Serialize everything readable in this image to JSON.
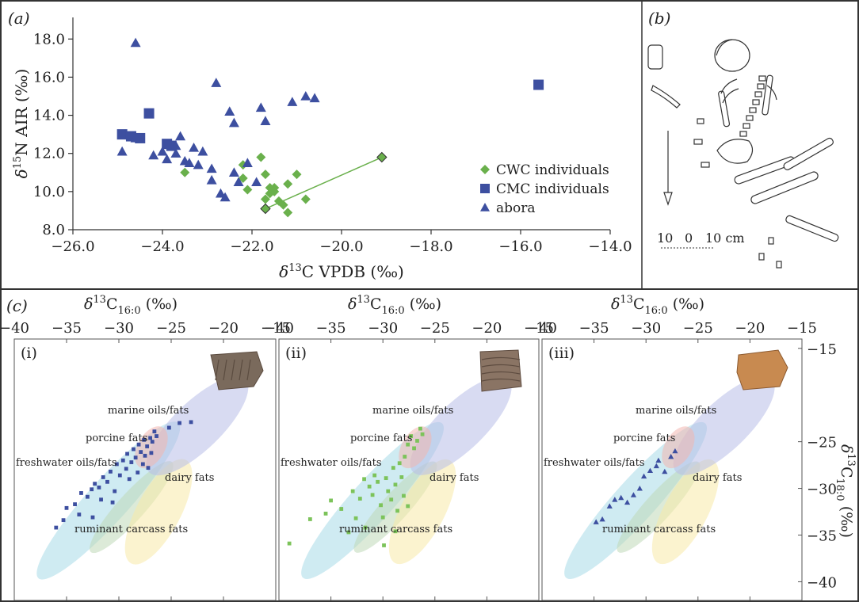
{
  "panels": {
    "a_label": "(a)",
    "b_label": "(b)",
    "c_label": "(c)"
  },
  "colors": {
    "cwc": "#6ab04c",
    "cmc": "#3d4fa0",
    "abora": "#3d4fa0",
    "marine": "#b8bee8",
    "porcine": "#f2b7b0",
    "freshwater": "#a7dbe8",
    "dairy": "#f7eaa8",
    "ruminant": "#bfd8b8"
  },
  "scale_bar": {
    "ticks": [
      "10",
      "0",
      "10 cm"
    ]
  },
  "chart_data": [
    {
      "id": "a",
      "type": "scatter",
      "xlabel": "δ13C VPDB (‰)",
      "ylabel": "δ15N AIR (‰)",
      "xlim": [
        -26,
        -14
      ],
      "ylim": [
        8,
        19
      ],
      "xticks": [
        "−26.0",
        "−24.0",
        "−22.0",
        "−20.0",
        "−18.0",
        "−16.0",
        "−14.0"
      ],
      "yticks": [
        "8.0",
        "10.0",
        "12.0",
        "14.0",
        "16.0",
        "18.0"
      ],
      "legend_position": "right",
      "series": [
        {
          "name": "CWC individuals",
          "marker": "diamond",
          "points": [
            [
              -23.5,
              11.0
            ],
            [
              -22.2,
              11.4
            ],
            [
              -22.2,
              10.7
            ],
            [
              -22.1,
              10.1
            ],
            [
              -21.8,
              11.8
            ],
            [
              -21.7,
              10.9
            ],
            [
              -21.7,
              9.6
            ],
            [
              -21.6,
              9.9
            ],
            [
              -21.6,
              10.2
            ],
            [
              -21.5,
              10.2
            ],
            [
              -21.5,
              10.0
            ],
            [
              -21.4,
              9.5
            ],
            [
              -21.3,
              9.3
            ],
            [
              -21.2,
              8.9
            ],
            [
              -21.2,
              10.4
            ],
            [
              -21.0,
              10.9
            ],
            [
              -20.8,
              9.6
            ],
            [
              -19.1,
              11.8
            ],
            [
              -21.7,
              9.1
            ]
          ]
        },
        {
          "name": "CMC individuals",
          "marker": "square",
          "points": [
            [
              -24.9,
              13.0
            ],
            [
              -24.7,
              12.9
            ],
            [
              -24.5,
              12.8
            ],
            [
              -24.3,
              14.1
            ],
            [
              -23.9,
              12.5
            ],
            [
              -23.8,
              12.4
            ],
            [
              -15.6,
              15.6
            ]
          ]
        },
        {
          "name": "abora",
          "marker": "triangle",
          "points": [
            [
              -24.6,
              17.8
            ],
            [
              -24.9,
              12.1
            ],
            [
              -24.6,
              12.8
            ],
            [
              -24.2,
              11.9
            ],
            [
              -24.0,
              12.1
            ],
            [
              -23.9,
              11.7
            ],
            [
              -23.7,
              12.0
            ],
            [
              -23.6,
              12.9
            ],
            [
              -23.7,
              12.4
            ],
            [
              -23.5,
              11.6
            ],
            [
              -23.4,
              11.5
            ],
            [
              -23.3,
              12.3
            ],
            [
              -23.2,
              11.4
            ],
            [
              -23.1,
              12.1
            ],
            [
              -22.9,
              11.2
            ],
            [
              -22.9,
              10.6
            ],
            [
              -22.7,
              9.9
            ],
            [
              -22.6,
              9.7
            ],
            [
              -22.8,
              15.7
            ],
            [
              -22.5,
              14.2
            ],
            [
              -22.4,
              13.6
            ],
            [
              -22.4,
              11.0
            ],
            [
              -22.3,
              10.5
            ],
            [
              -22.1,
              11.5
            ],
            [
              -21.8,
              14.4
            ],
            [
              -21.7,
              13.7
            ],
            [
              -21.9,
              10.5
            ],
            [
              -21.1,
              14.7
            ],
            [
              -20.8,
              15.0
            ],
            [
              -20.6,
              14.9
            ]
          ]
        }
      ],
      "connector": {
        "from": [
          -21.7,
          9.1
        ],
        "to": [
          -19.1,
          11.8
        ]
      }
    },
    {
      "id": "c",
      "type": "scatter",
      "xlabel": "δ13C16:0 (‰)",
      "ylabel": "δ13C18:0 (‰)",
      "xlim": [
        -40,
        -15
      ],
      "ylim": [
        -42,
        -14
      ],
      "xticks": [
        "−40",
        "−35",
        "−30",
        "−25",
        "−20",
        "−15"
      ],
      "yticks": [
        "−15",
        "−25",
        "−30",
        "−35",
        "−40"
      ],
      "region_labels": {
        "marine": "marine oils/fats",
        "porcine": "porcine fats",
        "freshwater": "freshwater oils/fats",
        "dairy": "dairy fats",
        "ruminant": "ruminant carcass fats"
      },
      "subplots": [
        {
          "label": "(i)",
          "marker": "square",
          "color": "#3d4fa0",
          "points": [
            [
              -36.0,
              -34.2
            ],
            [
              -35.3,
              -33.4
            ],
            [
              -35.0,
              -32.1
            ],
            [
              -34.2,
              -31.7
            ],
            [
              -33.8,
              -32.8
            ],
            [
              -33.6,
              -30.5
            ],
            [
              -33.0,
              -30.9
            ],
            [
              -32.6,
              -30.1
            ],
            [
              -32.3,
              -29.5
            ],
            [
              -31.9,
              -29.9
            ],
            [
              -31.5,
              -28.8
            ],
            [
              -31.1,
              -29.3
            ],
            [
              -30.8,
              -28.2
            ],
            [
              -30.4,
              -30.3
            ],
            [
              -30.2,
              -27.4
            ],
            [
              -29.9,
              -28.6
            ],
            [
              -29.6,
              -27.0
            ],
            [
              -29.3,
              -27.9
            ],
            [
              -29.2,
              -26.3
            ],
            [
              -29.0,
              -29.0
            ],
            [
              -28.8,
              -27.2
            ],
            [
              -28.6,
              -25.8
            ],
            [
              -28.4,
              -26.7
            ],
            [
              -28.2,
              -28.3
            ],
            [
              -28.1,
              -25.3
            ],
            [
              -27.9,
              -26.1
            ],
            [
              -27.7,
              -27.4
            ],
            [
              -27.6,
              -24.8
            ],
            [
              -27.5,
              -26.5
            ],
            [
              -27.3,
              -25.5
            ],
            [
              -27.2,
              -27.8
            ],
            [
              -27.0,
              -24.6
            ],
            [
              -26.9,
              -26.2
            ],
            [
              -26.8,
              -25.0
            ],
            [
              -26.6,
              -23.9
            ],
            [
              -26.4,
              -24.4
            ],
            [
              -25.2,
              -23.5
            ],
            [
              -24.2,
              -23.0
            ],
            [
              -23.1,
              -22.9
            ],
            [
              -30.6,
              -31.5
            ],
            [
              -31.7,
              -31.2
            ],
            [
              -32.5,
              -33.1
            ]
          ]
        },
        {
          "label": "(ii)",
          "marker": "square",
          "color": "#6ab04c",
          "points": [
            [
              -39.0,
              -35.9
            ],
            [
              -37.0,
              -33.3
            ],
            [
              -35.5,
              -32.7
            ],
            [
              -35.0,
              -31.3
            ],
            [
              -34.0,
              -32.2
            ],
            [
              -33.3,
              -34.7
            ],
            [
              -32.9,
              -30.3
            ],
            [
              -32.6,
              -33.2
            ],
            [
              -32.2,
              -31.1
            ],
            [
              -31.8,
              -29.0
            ],
            [
              -31.7,
              -34.2
            ],
            [
              -31.3,
              -29.8
            ],
            [
              -31.0,
              -30.7
            ],
            [
              -30.8,
              -28.6
            ],
            [
              -30.5,
              -29.3
            ],
            [
              -30.2,
              -31.8
            ],
            [
              -30.0,
              -33.1
            ],
            [
              -29.7,
              -28.9
            ],
            [
              -29.5,
              -30.3
            ],
            [
              -29.2,
              -31.2
            ],
            [
              -29.0,
              -27.8
            ],
            [
              -28.8,
              -29.6
            ],
            [
              -28.6,
              -32.4
            ],
            [
              -28.4,
              -27.3
            ],
            [
              -28.2,
              -28.8
            ],
            [
              -28.0,
              -30.8
            ],
            [
              -27.9,
              -26.6
            ],
            [
              -27.6,
              -25.3
            ],
            [
              -27.3,
              -24.4
            ],
            [
              -27.0,
              -25.7
            ],
            [
              -26.7,
              -24.9
            ],
            [
              -26.4,
              -23.6
            ],
            [
              -26.2,
              -24.2
            ],
            [
              -28.8,
              -34.6
            ],
            [
              -27.6,
              -31.9
            ],
            [
              -29.9,
              -36.1
            ]
          ]
        },
        {
          "label": "(iii)",
          "marker": "triangle",
          "color": "#3d4fa0",
          "points": [
            [
              -34.8,
              -33.6
            ],
            [
              -34.2,
              -33.3
            ],
            [
              -33.5,
              -31.9
            ],
            [
              -33.0,
              -31.2
            ],
            [
              -32.4,
              -31.0
            ],
            [
              -31.8,
              -31.5
            ],
            [
              -31.2,
              -30.7
            ],
            [
              -30.6,
              -30.0
            ],
            [
              -30.2,
              -28.7
            ],
            [
              -29.6,
              -28.1
            ],
            [
              -29.0,
              -27.6
            ],
            [
              -28.8,
              -27.0
            ],
            [
              -27.6,
              -26.6
            ],
            [
              -27.2,
              -26.0
            ],
            [
              -28.2,
              -28.2
            ]
          ]
        }
      ]
    }
  ]
}
